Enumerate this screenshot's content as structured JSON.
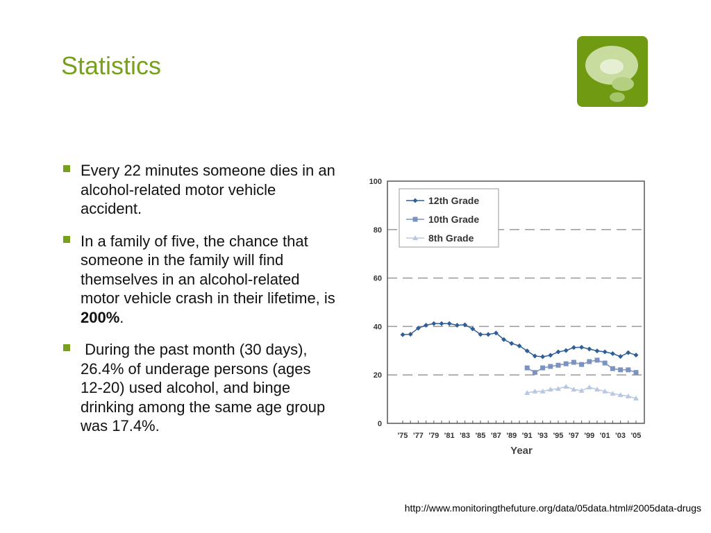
{
  "title": "Statistics",
  "bullets": [
    [
      "Every 22 minutes someone dies in an alcohol-related motor vehicle accident."
    ],
    [
      "In a family of five, the chance that someone in the family will find themselves in an alcohol-related motor vehicle crash in their lifetime, is ",
      "200%",
      "."
    ],
    [
      " During the past month (30 days), 26.4% of underage persons (ages 12-20) used alcohol, and binge drinking among the same age group was 17.4%."
    ]
  ],
  "source": "http://www.monitoringthefuture.org/data/05data.html#2005data-drugs",
  "chart_data": {
    "type": "line",
    "x_label": "Year",
    "categories": [
      "'75",
      null,
      "'77",
      null,
      "'79",
      null,
      "'81",
      null,
      "'83",
      null,
      "'85",
      null,
      "'87",
      null,
      "'89",
      null,
      "'91",
      null,
      "'93",
      null,
      "'95",
      null,
      "'97",
      null,
      "'99",
      null,
      "'01",
      null,
      "'03",
      null,
      "'05"
    ],
    "series": [
      {
        "name": "12th Grade",
        "color": "#2f5f99",
        "marker": "diamond",
        "values": [
          36.6,
          36.8,
          39.3,
          40.5,
          41.2,
          41.2,
          41.2,
          40.5,
          40.7,
          39,
          36.7,
          36.7,
          37.3,
          34.6,
          33,
          32,
          29.9,
          27.8,
          27.5,
          28.1,
          29.5,
          30.1,
          31.3,
          31.4,
          30.7,
          29.9,
          29.5,
          28.8,
          27.6,
          29.2,
          28.2
        ]
      },
      {
        "name": "10th Grade",
        "color": "#7b93c0",
        "marker": "square",
        "values": [
          null,
          null,
          null,
          null,
          null,
          null,
          null,
          null,
          null,
          null,
          null,
          null,
          null,
          null,
          null,
          null,
          22.9,
          21,
          22.9,
          23.5,
          24,
          24.6,
          25.2,
          24.3,
          25.5,
          26.1,
          24.9,
          22.6,
          22.1,
          22.1,
          21
        ]
      },
      {
        "name": "8th Grade",
        "color": "#b9c8e2",
        "marker": "triangle",
        "values": [
          null,
          null,
          null,
          null,
          null,
          null,
          null,
          null,
          null,
          null,
          null,
          null,
          null,
          null,
          null,
          null,
          12.6,
          13.2,
          13.2,
          14,
          14.3,
          15.2,
          14,
          13.5,
          14.9,
          14,
          13.2,
          12.3,
          11.7,
          11.2,
          10.3
        ]
      }
    ],
    "ylim": [
      0,
      100
    ],
    "yticks": [
      0,
      20,
      40,
      60,
      80,
      100
    ],
    "grid": true,
    "legend": "upper left"
  }
}
